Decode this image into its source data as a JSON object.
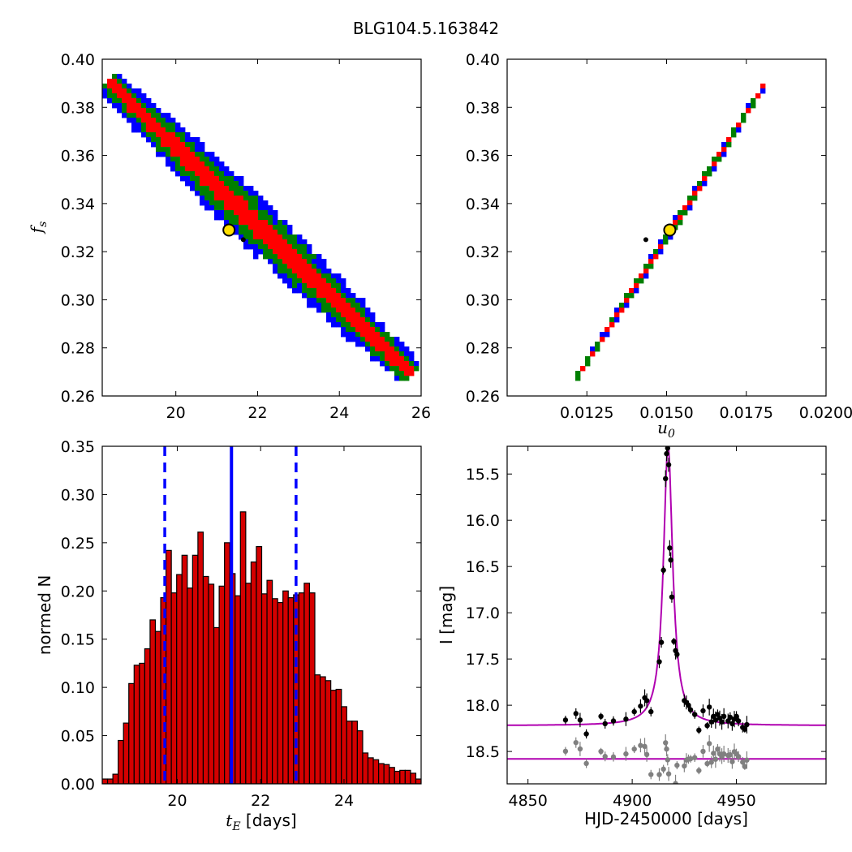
{
  "figure_title": "BLG104.5.163842",
  "colors": {
    "blue": "#0000ff",
    "green": "#007f00",
    "red": "#ff0000",
    "hist_red": "#d40000",
    "model": "#b000b0",
    "grey": "#808080",
    "marker": "#ffe000"
  },
  "chart_data": [
    {
      "id": "tE-fs",
      "type": "heatmap",
      "xlim": [
        18.2,
        26
      ],
      "ylim": [
        0.26,
        0.4
      ],
      "xticks": [
        20,
        22,
        24,
        26
      ],
      "yticks": [
        0.26,
        0.28,
        0.3,
        0.32,
        0.34,
        0.36,
        0.38,
        0.4
      ],
      "xtick_labels": [
        "20",
        "22",
        "24",
        "26"
      ],
      "ytick_labels": [
        "0.26",
        "0.28",
        "0.30",
        "0.32",
        "0.34",
        "0.36",
        "0.38",
        "0.40"
      ],
      "ylabel_base": "f",
      "ylabel_sub": "s",
      "band": {
        "x_start": 18.4,
        "y_start": 0.39,
        "x_end": 25.7,
        "y_end": 0.27
      },
      "widths": {
        "blue": 0.0095,
        "green": 0.0068,
        "red": 0.0036
      },
      "best_fit": {
        "x": 21.3,
        "y": 0.329
      },
      "point": {
        "x": 21.65,
        "y": 0.325
      }
    },
    {
      "id": "u0-fs",
      "type": "heatmap",
      "xlim": [
        0.01,
        0.02
      ],
      "ylim": [
        0.26,
        0.4
      ],
      "xticks": [
        0.0125,
        0.015,
        0.0175,
        0.02
      ],
      "yticks": [
        0.26,
        0.28,
        0.3,
        0.32,
        0.34,
        0.36,
        0.38,
        0.4
      ],
      "xtick_labels": [
        "0.0125",
        "0.0150",
        "0.0175",
        "0.0200"
      ],
      "ytick_labels": [
        "0.26",
        "0.28",
        "0.30",
        "0.32",
        "0.34",
        "0.36",
        "0.38",
        "0.40"
      ],
      "xlabel_base": "u",
      "xlabel_sub": "0",
      "band": {
        "x_start": 0.0122,
        "y_start": 0.268,
        "x_end": 0.018,
        "y_end": 0.388
      },
      "widths": {
        "blue": 0.0015,
        "green": 0.0012,
        "red": 0.00055
      },
      "best_fit": {
        "x": 0.0151,
        "y": 0.329
      },
      "point": {
        "x": 0.01435,
        "y": 0.325
      }
    },
    {
      "id": "tE-hist",
      "type": "bar",
      "xlim": [
        18.2,
        25.85
      ],
      "ylim": [
        0,
        0.35
      ],
      "xticks": [
        20,
        22,
        24
      ],
      "yticks": [
        0.0,
        0.05,
        0.1,
        0.15,
        0.2,
        0.25,
        0.3,
        0.35
      ],
      "xtick_labels": [
        "20",
        "22",
        "24"
      ],
      "ytick_labels": [
        "0.00",
        "0.05",
        "0.10",
        "0.15",
        "0.20",
        "0.25",
        "0.30",
        "0.35"
      ],
      "xlabel_base": "t",
      "xlabel_sub": "E",
      "xlabel_rest": " [days]",
      "ylabel": "normed N",
      "bin_start": 18.2,
      "bin_width": 0.1275,
      "values": [
        0.005,
        0.005,
        0.01,
        0.045,
        0.063,
        0.104,
        0.123,
        0.125,
        0.14,
        0.17,
        0.158,
        0.193,
        0.242,
        0.198,
        0.217,
        0.237,
        0.203,
        0.237,
        0.261,
        0.215,
        0.207,
        0.162,
        0.205,
        0.25,
        0.218,
        0.195,
        0.282,
        0.208,
        0.23,
        0.246,
        0.197,
        0.211,
        0.192,
        0.188,
        0.2,
        0.193,
        0.196,
        0.198,
        0.208,
        0.198,
        0.113,
        0.111,
        0.107,
        0.097,
        0.098,
        0.08,
        0.065,
        0.065,
        0.055,
        0.032,
        0.027,
        0.025,
        0.021,
        0.02,
        0.017,
        0.013,
        0.014,
        0.014,
        0.011,
        0.005,
        0.002,
        0.0
      ],
      "median": 21.3,
      "lower": 19.7,
      "upper": 22.85
    },
    {
      "id": "lightcurve",
      "type": "scatter",
      "xlim": [
        4840,
        4993
      ],
      "ylim": [
        18.85,
        15.2
      ],
      "xticks": [
        4850,
        4900,
        4950
      ],
      "yticks": [
        15.5,
        16.0,
        16.5,
        17.0,
        17.5,
        18.0,
        18.5
      ],
      "xtick_labels": [
        "4850",
        "4900",
        "4950"
      ],
      "ytick_labels": [
        "15.5",
        "16.0",
        "16.5",
        "17.0",
        "17.5",
        "18.0",
        "18.5"
      ],
      "xlabel": "HJD-2450000 [days]",
      "ylabel": "I [mag]",
      "model": {
        "t0": 4917.2,
        "baseline": 18.22,
        "peak": 15.2,
        "half_width": 2.7,
        "offset": 0.36,
        "residual_base": 18.58
      },
      "data_points": [
        [
          4868,
          18.16
        ],
        [
          4873,
          18.09
        ],
        [
          4875,
          18.16
        ],
        [
          4878,
          18.31
        ],
        [
          4885,
          18.12
        ],
        [
          4887,
          18.2
        ],
        [
          4891,
          18.17
        ],
        [
          4897,
          18.15
        ],
        [
          4901,
          18.07
        ],
        [
          4904,
          18.01
        ],
        [
          4906,
          17.92
        ],
        [
          4907,
          17.95
        ],
        [
          4909,
          18.07
        ],
        [
          4913,
          17.53
        ],
        [
          4914,
          17.32
        ],
        [
          4915,
          16.54
        ],
        [
          4916,
          15.55
        ],
        [
          4916.5,
          15.28
        ],
        [
          4917,
          15.22
        ],
        [
          4917.5,
          15.4
        ],
        [
          4918,
          16.3
        ],
        [
          4918.5,
          16.43
        ],
        [
          4919,
          16.83
        ],
        [
          4920,
          17.31
        ],
        [
          4920.8,
          17.41
        ],
        [
          4921.5,
          17.45
        ],
        [
          4925,
          17.95
        ],
        [
          4926,
          17.97
        ],
        [
          4927,
          18.0
        ],
        [
          4928,
          18.05
        ],
        [
          4930,
          18.1
        ],
        [
          4932,
          18.27
        ],
        [
          4934,
          18.06
        ],
        [
          4936,
          18.22
        ],
        [
          4937,
          18.02
        ],
        [
          4938,
          18.18
        ],
        [
          4939,
          18.12
        ],
        [
          4940,
          18.16
        ],
        [
          4941,
          18.1
        ],
        [
          4942,
          18.14
        ],
        [
          4943,
          18.18
        ],
        [
          4944,
          18.12
        ],
        [
          4946,
          18.17
        ],
        [
          4947,
          18.13
        ],
        [
          4948,
          18.2
        ],
        [
          4949,
          18.15
        ],
        [
          4950,
          18.12
        ],
        [
          4951,
          18.17
        ],
        [
          4953,
          18.24
        ],
        [
          4954,
          18.26
        ],
        [
          4955,
          18.21
        ]
      ]
    }
  ]
}
